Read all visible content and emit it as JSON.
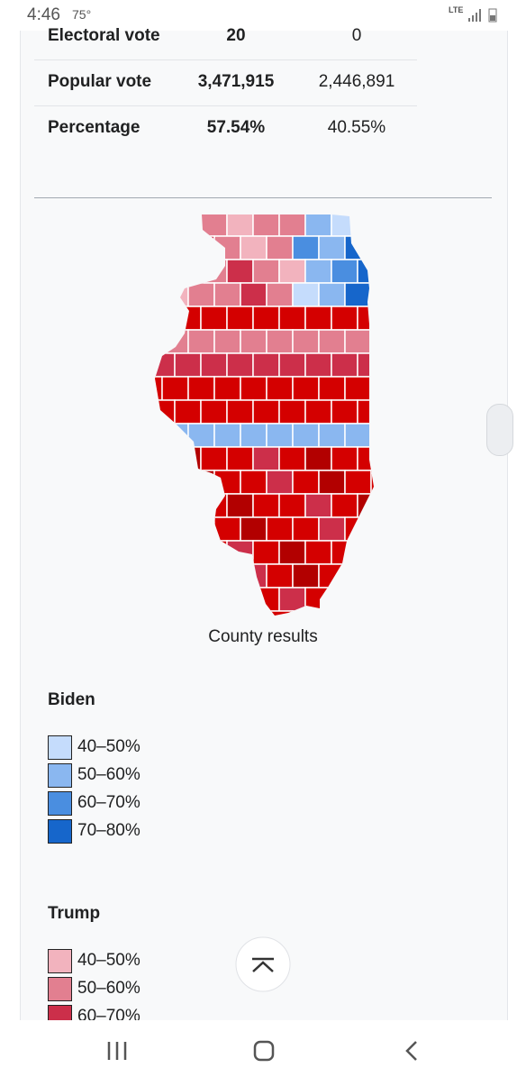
{
  "status_bar": {
    "time": "4:46",
    "temperature": "75°",
    "network": "LTE"
  },
  "results_table": {
    "rows": [
      [
        "Electoral vote",
        "20",
        "0"
      ],
      [
        "Popular vote",
        "3,471,915",
        "2,446,891"
      ],
      [
        "Percentage",
        "57.54%",
        "40.55%"
      ]
    ]
  },
  "map": {
    "caption": "County results"
  },
  "legend": [
    {
      "title": "Biden",
      "items": [
        {
          "label": "40–50%",
          "color": "#c5dcfc"
        },
        {
          "label": "50–60%",
          "color": "#8ab7f0"
        },
        {
          "label": "60–70%",
          "color": "#4a8ee0"
        },
        {
          "label": "70–80%",
          "color": "#1666cb"
        }
      ]
    },
    {
      "title": "Trump",
      "items": [
        {
          "label": "40–50%",
          "color": "#f2b3be"
        },
        {
          "label": "50–60%",
          "color": "#e27f90"
        },
        {
          "label": "60–70%",
          "color": "#cc2f4a"
        }
      ]
    }
  ]
}
